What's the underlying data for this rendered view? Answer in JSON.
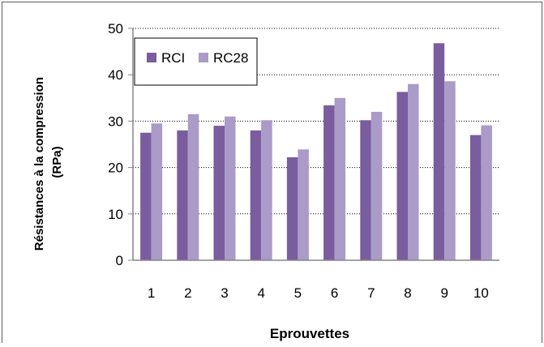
{
  "chart_data": {
    "type": "bar",
    "categories": [
      "1",
      "2",
      "3",
      "4",
      "5",
      "6",
      "7",
      "8",
      "9",
      "10"
    ],
    "series": [
      {
        "name": "RCI",
        "values": [
          27.5,
          28.0,
          29.0,
          28.0,
          22.2,
          33.4,
          30.2,
          36.3,
          46.8,
          27.0
        ]
      },
      {
        "name": "RC28",
        "values": [
          29.5,
          31.5,
          31.0,
          30.2,
          23.9,
          35.0,
          32.0,
          38.0,
          38.6,
          29.1
        ]
      }
    ],
    "xlabel": "Eprouvettes",
    "ylabel_lines": [
      "Résistances à la compression",
      "(RPa)"
    ],
    "ylim": [
      0,
      50
    ],
    "yticks": [
      "0",
      "10",
      "20",
      "30",
      "40",
      "50"
    ],
    "grid": "horizontal dotted",
    "legend_position": "top-left",
    "colors": {
      "RCI": "#7a5d9e",
      "RC28": "#aa9bc8",
      "frame": "#868686",
      "axis": "#868686",
      "grid": "#000000"
    }
  }
}
